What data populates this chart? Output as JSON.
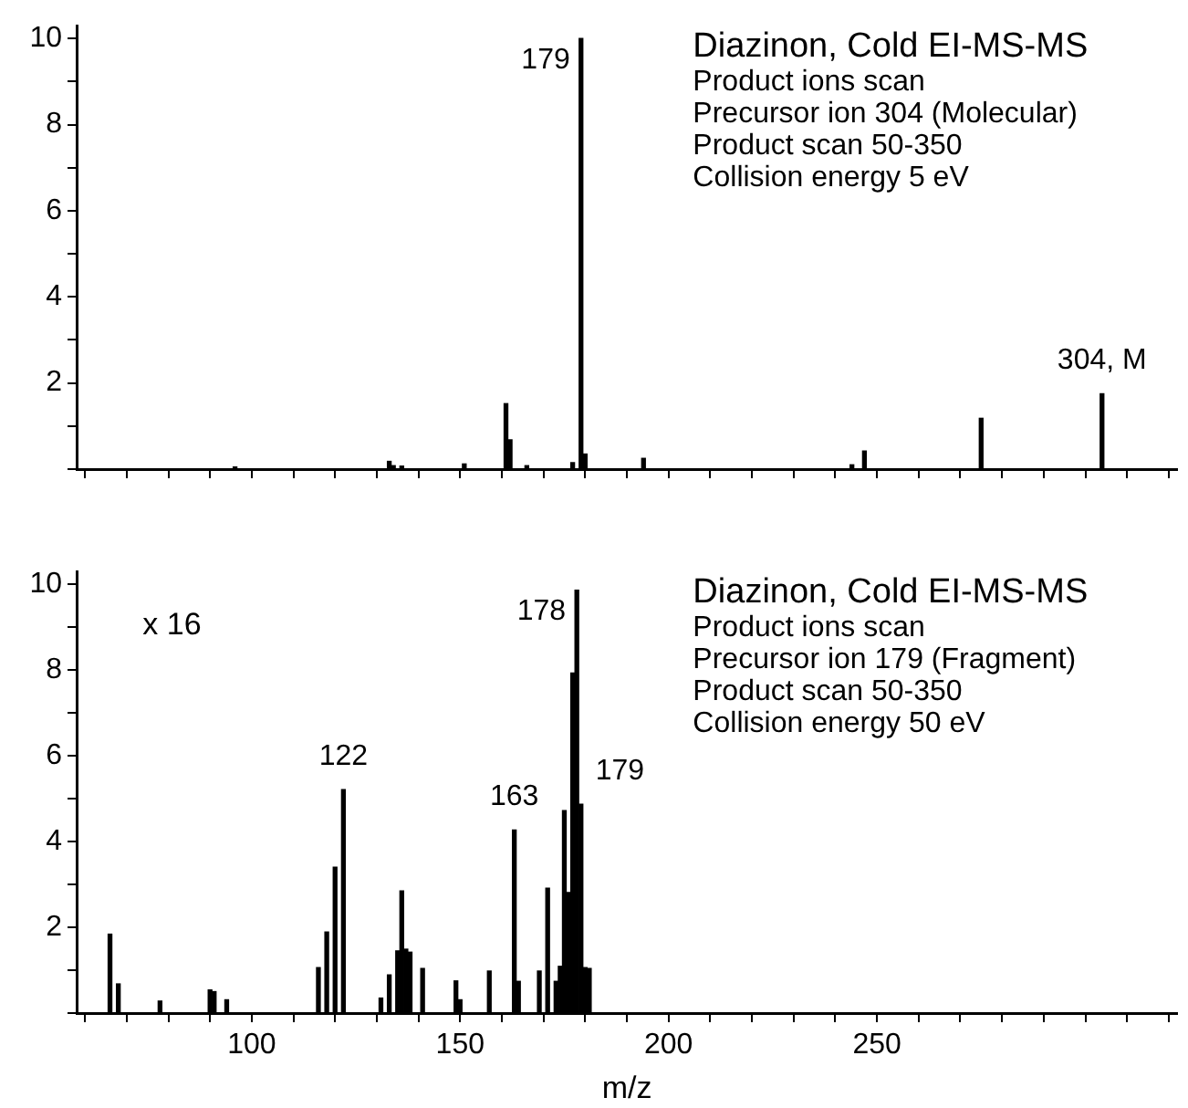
{
  "chart_data": [
    {
      "type": "bar",
      "title": "Diazinon, Cold EI-MS-MS",
      "annotations": [
        "Product ions scan",
        "Precursor ion 304 (Molecular)",
        "Product scan 50-350",
        "Collision energy 5 eV",
        {
          "text": "179",
          "x": 179,
          "y": 10
        },
        {
          "text": "304, M",
          "x": 304,
          "y": 1.75
        }
      ],
      "x": [
        96,
        133,
        134,
        136,
        151,
        161,
        162,
        166,
        177,
        179,
        180,
        194,
        244,
        247,
        275,
        304
      ],
      "values": [
        0.05,
        0.18,
        0.08,
        0.07,
        0.12,
        1.52,
        0.68,
        0.08,
        0.15,
        10,
        0.35,
        0.25,
        0.1,
        0.42,
        1.18,
        1.75
      ],
      "color": "#000000",
      "xlim": [
        58,
        322
      ],
      "xticks": [
        {
          "value": 60,
          "label": null
        },
        {
          "value": 70,
          "label": null
        },
        {
          "value": 80,
          "label": null
        },
        {
          "value": 90,
          "label": null
        },
        100,
        {
          "value": 110,
          "label": null
        },
        {
          "value": 120,
          "label": null
        },
        {
          "value": 130,
          "label": null
        },
        {
          "value": 140,
          "label": null
        },
        150,
        {
          "value": 160,
          "label": null
        },
        {
          "value": 170,
          "label": null
        },
        {
          "value": 180,
          "label": null
        },
        {
          "value": 190,
          "label": null
        },
        200,
        {
          "value": 210,
          "label": null
        },
        {
          "value": 220,
          "label": null
        },
        {
          "value": 230,
          "label": null
        },
        {
          "value": 240,
          "label": null
        },
        250,
        {
          "value": 260,
          "label": null
        },
        {
          "value": 270,
          "label": null
        },
        {
          "value": 280,
          "label": null
        },
        {
          "value": 290,
          "label": null
        },
        {
          "value": 300,
          "label": null
        },
        {
          "value": 310,
          "label": null
        },
        {
          "value": 320,
          "label": null
        }
      ],
      "ylim": [
        0,
        10.3
      ],
      "yticks": [
        {
          "value": 0,
          "label": null
        },
        {
          "value": 1,
          "label": null
        },
        2,
        {
          "value": 3,
          "label": null
        },
        4,
        {
          "value": 5,
          "label": null
        },
        6,
        {
          "value": 7,
          "label": null
        },
        8,
        {
          "value": 9,
          "label": null
        },
        10
      ],
      "tick_labels": "y",
      "grid": false,
      "legend": false
    },
    {
      "type": "bar",
      "title": "Diazinon, Cold EI-MS-MS",
      "subtitle": "x 16",
      "xlabel": "m/z",
      "annotations": [
        "Product ions scan",
        "Precursor ion 179 (Fragment)",
        "Product scan 50-350",
        "Collision energy 50 eV",
        {
          "text": "122",
          "x": 122,
          "y": 5.21
        },
        {
          "text": "163",
          "x": 163,
          "y": 4.27
        },
        {
          "text": "178",
          "x": 178,
          "y": 9.86
        },
        {
          "text": "179",
          "x": 179,
          "y": 4.87
        }
      ],
      "x": [
        66,
        68,
        78,
        90,
        91,
        94,
        116,
        118,
        120,
        122,
        131,
        133,
        135,
        136,
        137,
        138,
        141,
        149,
        150,
        157,
        163,
        164,
        169,
        171,
        173,
        174,
        175,
        176,
        177,
        178,
        179,
        180,
        181
      ],
      "values": [
        1.84,
        0.68,
        0.28,
        0.54,
        0.5,
        0.31,
        1.06,
        1.89,
        3.4,
        5.21,
        0.35,
        0.89,
        1.45,
        2.85,
        1.49,
        1.42,
        1.04,
        0.75,
        0.31,
        0.98,
        4.27,
        0.74,
        0.98,
        2.91,
        0.74,
        1.09,
        4.72,
        2.81,
        7.93,
        9.86,
        4.87,
        1.06,
        1.04
      ],
      "color": "#000000",
      "xlim": [
        58,
        322
      ],
      "xticks": [
        {
          "value": 60,
          "label": null
        },
        {
          "value": 70,
          "label": null
        },
        {
          "value": 80,
          "label": null
        },
        {
          "value": 90,
          "label": null
        },
        100,
        {
          "value": 110,
          "label": null
        },
        {
          "value": 120,
          "label": null
        },
        {
          "value": 130,
          "label": null
        },
        {
          "value": 140,
          "label": null
        },
        150,
        {
          "value": 160,
          "label": null
        },
        {
          "value": 170,
          "label": null
        },
        {
          "value": 180,
          "label": null
        },
        {
          "value": 190,
          "label": null
        },
        200,
        {
          "value": 210,
          "label": null
        },
        {
          "value": 220,
          "label": null
        },
        {
          "value": 230,
          "label": null
        },
        {
          "value": 240,
          "label": null
        },
        250,
        {
          "value": 260,
          "label": null
        },
        {
          "value": 270,
          "label": null
        },
        {
          "value": 280,
          "label": null
        },
        {
          "value": 290,
          "label": null
        },
        {
          "value": 300,
          "label": null
        },
        {
          "value": 310,
          "label": null
        },
        {
          "value": 320,
          "label": null
        }
      ],
      "ylim": [
        0,
        10.3
      ],
      "yticks": [
        {
          "value": 0,
          "label": null
        },
        {
          "value": 1,
          "label": null
        },
        2,
        {
          "value": 3,
          "label": null
        },
        4,
        {
          "value": 5,
          "label": null
        },
        6,
        {
          "value": 7,
          "label": null
        },
        8,
        {
          "value": 9,
          "label": null
        },
        10
      ],
      "grid": false,
      "legend": false
    }
  ]
}
